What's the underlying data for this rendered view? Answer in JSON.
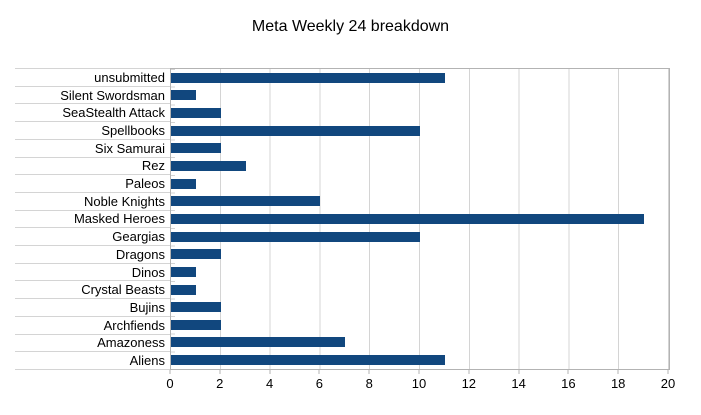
{
  "chart_data": {
    "type": "bar",
    "orientation": "horizontal",
    "title": "Meta Weekly 24 breakdown",
    "categories": [
      "unsubmitted",
      "Silent Swordsman",
      "SeaStealth Attack",
      "Spellbooks",
      "Six Samurai",
      "Rez",
      "Paleos",
      "Noble Knights",
      "Masked Heroes",
      "Geargias",
      "Dragons",
      "Dinos",
      "Crystal Beasts",
      "Bujins",
      "Archfiends",
      "Amazoness",
      "Aliens"
    ],
    "values": [
      11,
      1,
      2,
      10,
      2,
      3,
      1,
      6,
      19,
      10,
      2,
      1,
      1,
      2,
      2,
      7,
      11
    ],
    "xlabel": "",
    "ylabel": "",
    "xlim": [
      0,
      20
    ],
    "xticks": [
      0,
      2,
      4,
      6,
      8,
      10,
      12,
      14,
      16,
      18,
      20
    ],
    "grid": "vertical-only",
    "legend": "none",
    "colors": {
      "bar": "#11477e",
      "gridline": "#d4d4d4",
      "axis": "#b3b3b3",
      "text": "#000000",
      "background": "#ffffff"
    }
  }
}
